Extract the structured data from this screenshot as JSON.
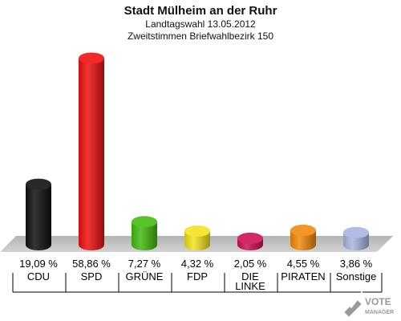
{
  "chart_data": {
    "type": "bar",
    "title": "Stadt Mülheim an der Ruhr",
    "subtitle": [
      "Landtagswahl 13.05.2012",
      "Zweitstimmen Briefwahlbezirk 150"
    ],
    "categories": [
      [
        "CDU"
      ],
      [
        "SPD"
      ],
      [
        "GRÜNE"
      ],
      [
        "FDP"
      ],
      [
        "DIE",
        "LINKE"
      ],
      [
        "PIRATEN"
      ],
      [
        "Sonstige"
      ]
    ],
    "values": [
      19.09,
      58.86,
      7.27,
      4.32,
      2.05,
      4.55,
      3.86
    ],
    "value_labels": [
      "19,09 %",
      "58,86 %",
      "7,27 %",
      "4,32 %",
      "2,05 %",
      "4,55 %",
      "3,86 %"
    ],
    "colors": [
      "#111111",
      "#ee1111",
      "#44bb11",
      "#f4e21e",
      "#cc1155",
      "#f28a0c",
      "#a9b6e0"
    ],
    "ylim": [
      0,
      60
    ]
  },
  "watermark": {
    "line1": "VOTE",
    "line2": "MANAGER"
  }
}
